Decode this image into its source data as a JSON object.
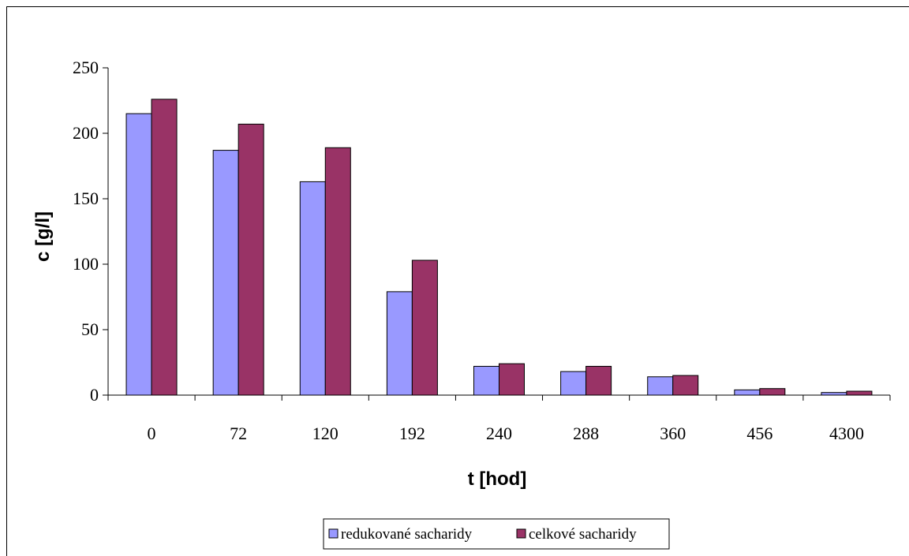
{
  "chart_data": {
    "type": "bar",
    "categories": [
      "0",
      "72",
      "120",
      "192",
      "240",
      "288",
      "360",
      "456",
      "4300"
    ],
    "series": [
      {
        "name": "redukované sacharidy",
        "color": "#9999ff",
        "values": [
          215,
          187,
          163,
          79,
          22,
          18,
          14,
          4,
          2
        ]
      },
      {
        "name": "celkové sacharidy",
        "color": "#993366",
        "values": [
          226,
          207,
          189,
          103,
          24,
          22,
          15,
          5,
          3
        ]
      }
    ],
    "title": "",
    "xlabel": "t [hod]",
    "ylabel": "c  [g/l]",
    "ylim": [
      0,
      250
    ],
    "yticks": [
      "0",
      "50",
      "100",
      "150",
      "200",
      "250"
    ],
    "ytick_values": [
      0,
      50,
      100,
      150,
      200,
      250
    ],
    "grid": false,
    "legend_position": "bottom"
  }
}
